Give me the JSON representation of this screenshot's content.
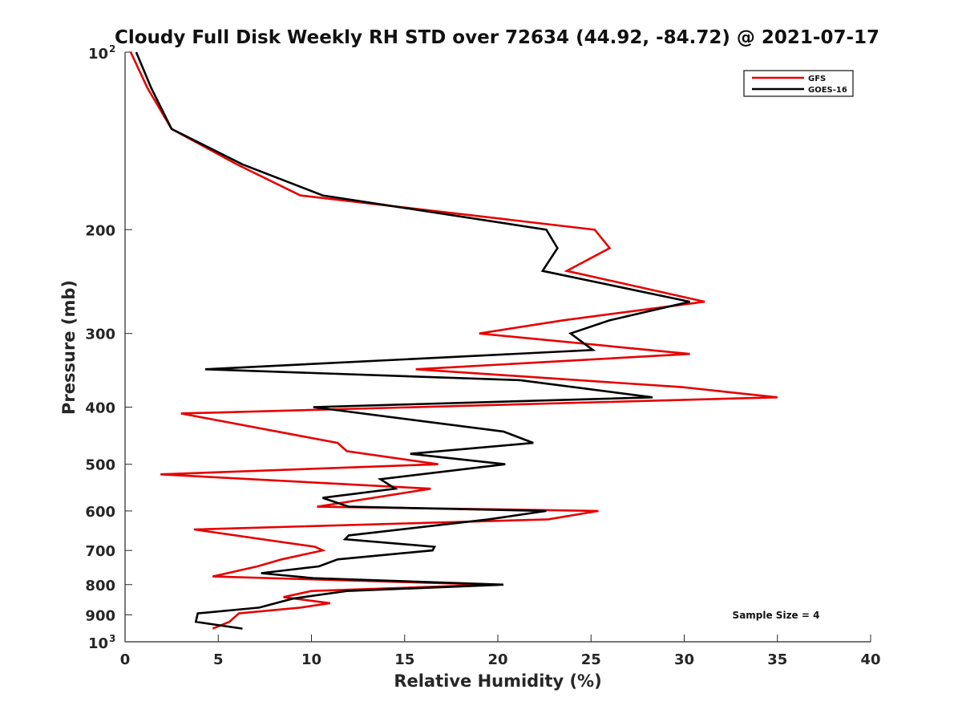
{
  "chart_data": {
    "type": "line",
    "title": "Cloudy Full Disk Weekly RH STD over 72634 (44.92, -84.72) @ 2021-07-17",
    "xlabel": "Relative Humidity (%)",
    "ylabel": "Pressure (mb)",
    "xlim": [
      0,
      40
    ],
    "ylim": [
      100,
      1000
    ],
    "yscale": "log",
    "y_reversed": true,
    "x_ticks": [
      {
        "value": 0,
        "label": "0"
      },
      {
        "value": 5,
        "label": "5"
      },
      {
        "value": 10,
        "label": "10"
      },
      {
        "value": 15,
        "label": "15"
      },
      {
        "value": 20,
        "label": "20"
      },
      {
        "value": 25,
        "label": "25"
      },
      {
        "value": 30,
        "label": "30"
      },
      {
        "value": 35,
        "label": "35"
      },
      {
        "value": 40,
        "label": "40"
      }
    ],
    "y_ticks": [
      {
        "value": 100,
        "label": "10",
        "sup": "2"
      },
      {
        "value": 200,
        "label": "200"
      },
      {
        "value": 300,
        "label": "300"
      },
      {
        "value": 400,
        "label": "400"
      },
      {
        "value": 500,
        "label": "500"
      },
      {
        "value": 600,
        "label": "600"
      },
      {
        "value": 700,
        "label": "700"
      },
      {
        "value": 800,
        "label": "800"
      },
      {
        "value": 900,
        "label": "900"
      },
      {
        "value": 1000,
        "label": "10",
        "sup": "3"
      }
    ],
    "grid": false,
    "legend_position": "top-right",
    "series": [
      {
        "name": "GFS",
        "color": "#e60000",
        "points": [
          {
            "x": 0.3,
            "y": 100
          },
          {
            "x": 1.2,
            "y": 115
          },
          {
            "x": 2.5,
            "y": 135
          },
          {
            "x": 6.0,
            "y": 155
          },
          {
            "x": 9.4,
            "y": 175
          },
          {
            "x": 25.2,
            "y": 200
          },
          {
            "x": 26.0,
            "y": 215
          },
          {
            "x": 23.7,
            "y": 235
          },
          {
            "x": 31.1,
            "y": 265
          },
          {
            "x": 23.5,
            "y": 285
          },
          {
            "x": 19.0,
            "y": 300
          },
          {
            "x": 30.3,
            "y": 325
          },
          {
            "x": 15.6,
            "y": 345
          },
          {
            "x": 29.9,
            "y": 370
          },
          {
            "x": 35.0,
            "y": 385
          },
          {
            "x": 3.0,
            "y": 410
          },
          {
            "x": 11.4,
            "y": 460
          },
          {
            "x": 11.9,
            "y": 475
          },
          {
            "x": 16.8,
            "y": 500
          },
          {
            "x": 1.9,
            "y": 520
          },
          {
            "x": 16.4,
            "y": 550
          },
          {
            "x": 10.3,
            "y": 590
          },
          {
            "x": 25.4,
            "y": 600
          },
          {
            "x": 22.7,
            "y": 620
          },
          {
            "x": 3.7,
            "y": 645
          },
          {
            "x": 10.2,
            "y": 690
          },
          {
            "x": 10.6,
            "y": 700
          },
          {
            "x": 8.4,
            "y": 725
          },
          {
            "x": 7.1,
            "y": 745
          },
          {
            "x": 4.7,
            "y": 775
          },
          {
            "x": 19.8,
            "y": 800
          },
          {
            "x": 10.0,
            "y": 820
          },
          {
            "x": 8.5,
            "y": 840
          },
          {
            "x": 11.0,
            "y": 860
          },
          {
            "x": 9.4,
            "y": 875
          },
          {
            "x": 6.1,
            "y": 895
          },
          {
            "x": 5.6,
            "y": 925
          },
          {
            "x": 4.7,
            "y": 950
          }
        ]
      },
      {
        "name": "GOES-16",
        "color": "#000000",
        "points": [
          {
            "x": 0.6,
            "y": 100
          },
          {
            "x": 1.4,
            "y": 115
          },
          {
            "x": 2.5,
            "y": 135
          },
          {
            "x": 6.3,
            "y": 155
          },
          {
            "x": 10.6,
            "y": 175
          },
          {
            "x": 22.6,
            "y": 200
          },
          {
            "x": 23.2,
            "y": 215
          },
          {
            "x": 22.4,
            "y": 235
          },
          {
            "x": 30.3,
            "y": 265
          },
          {
            "x": 26.0,
            "y": 285
          },
          {
            "x": 23.9,
            "y": 300
          },
          {
            "x": 25.1,
            "y": 320
          },
          {
            "x": 4.3,
            "y": 345
          },
          {
            "x": 21.2,
            "y": 360
          },
          {
            "x": 28.3,
            "y": 385
          },
          {
            "x": 10.1,
            "y": 400
          },
          {
            "x": 20.3,
            "y": 440
          },
          {
            "x": 21.9,
            "y": 460
          },
          {
            "x": 15.3,
            "y": 480
          },
          {
            "x": 20.4,
            "y": 500
          },
          {
            "x": 13.7,
            "y": 530
          },
          {
            "x": 14.5,
            "y": 550
          },
          {
            "x": 10.6,
            "y": 570
          },
          {
            "x": 12.0,
            "y": 590
          },
          {
            "x": 22.6,
            "y": 600
          },
          {
            "x": 19.5,
            "y": 620
          },
          {
            "x": 12.0,
            "y": 660
          },
          {
            "x": 11.8,
            "y": 670
          },
          {
            "x": 16.6,
            "y": 690
          },
          {
            "x": 16.5,
            "y": 700
          },
          {
            "x": 11.4,
            "y": 725
          },
          {
            "x": 10.4,
            "y": 745
          },
          {
            "x": 7.3,
            "y": 765
          },
          {
            "x": 10.1,
            "y": 780
          },
          {
            "x": 20.3,
            "y": 800
          },
          {
            "x": 11.9,
            "y": 820
          },
          {
            "x": 9.0,
            "y": 845
          },
          {
            "x": 7.2,
            "y": 875
          },
          {
            "x": 3.9,
            "y": 895
          },
          {
            "x": 3.8,
            "y": 925
          },
          {
            "x": 6.3,
            "y": 950
          }
        ]
      }
    ],
    "annotations": [
      {
        "text": "Sample Size = 4",
        "x": 32.5,
        "y": 900
      }
    ]
  }
}
